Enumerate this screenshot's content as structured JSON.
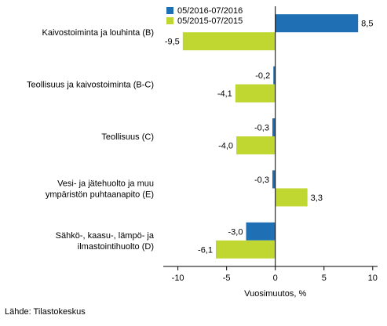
{
  "chart_data": {
    "type": "bar",
    "orientation": "horizontal",
    "categories": [
      [
        "Kaivostoiminta ja louhinta (B)"
      ],
      [
        "Teollisuus ja kaivostoiminta (B-C)"
      ],
      [
        "Teollisuus (C)"
      ],
      [
        "Vesi- ja jätehuolto ja muu",
        "ympäristön puhtaanapito (E)"
      ],
      [
        "Sähkö-, kaasu-, lämpö- ja",
        "ilmastointihuolto (D)"
      ]
    ],
    "series": [
      {
        "name": "05/2016-07/2016",
        "color": "#1f6fb4",
        "values": [
          8.5,
          -0.2,
          -0.3,
          -0.3,
          -3.0
        ],
        "labels": [
          "8,5",
          "-0,2",
          "-0,3",
          "-0,3",
          "-3,0"
        ]
      },
      {
        "name": "05/2015-07/2015",
        "color": "#bfd730",
        "values": [
          -9.5,
          -4.1,
          -4.0,
          3.3,
          -6.1
        ],
        "labels": [
          "-9,5",
          "-4,1",
          "-4,0",
          "3,3",
          "-6,1"
        ]
      }
    ],
    "xlim": [
      -11.5,
      10.5
    ],
    "xticks": [
      -10,
      -5,
      0,
      5,
      10
    ],
    "xtick_labels": [
      "-10",
      "-5",
      "0",
      "5",
      "10"
    ],
    "xlabel": "Vuosimuutos, %",
    "grid": false,
    "legend_position": "top"
  },
  "source": "Lähde: Tilastokeskus"
}
